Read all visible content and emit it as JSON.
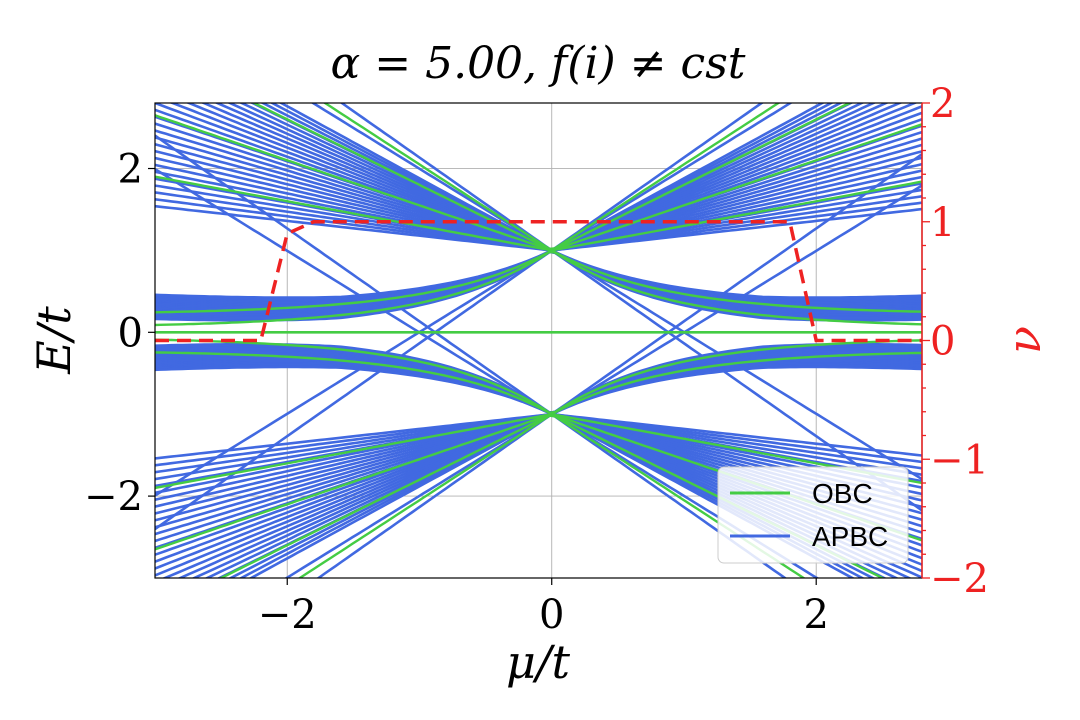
{
  "chart_data": {
    "type": "line",
    "title": "α = 5.00, f(i) ≠ cst",
    "xlabel": "μ/t",
    "ylabel": "E/t",
    "y2label": "ν",
    "xlim": [
      -3.0,
      2.8
    ],
    "ylim": [
      -3.0,
      2.8
    ],
    "y2lim": [
      -2,
      2
    ],
    "x_ticks": [
      -2,
      0,
      2
    ],
    "x_tick_labels": [
      "−2",
      "0",
      "2"
    ],
    "y_ticks": [
      -2,
      0,
      2
    ],
    "y_tick_labels": [
      "−2",
      "0",
      "2"
    ],
    "y2_ticks": [
      -2,
      -1,
      0,
      1,
      2
    ],
    "y2_tick_labels": [
      "−2",
      "−1",
      "0",
      "1",
      "2"
    ],
    "grid": true,
    "legend_position": "lower-right",
    "series": [
      {
        "name": "OBC",
        "color": "#44cc44",
        "description_values": {
          "zero_mode_E": 0.0,
          "node_points": [
            [
              0,
              1.0
            ],
            [
              0,
              -1.0
            ]
          ]
        }
      },
      {
        "name": "APBC",
        "color": "#4169e1",
        "description_values": {
          "node_points": [
            [
              0,
              1.0
            ],
            [
              0,
              -1.0
            ]
          ]
        }
      }
    ],
    "winding_number": {
      "color": "#ee2222",
      "axis": "right",
      "x": [
        -3.0,
        -2.2,
        -2.0,
        -1.8,
        1.8,
        2.0,
        2.2,
        2.8
      ],
      "y": [
        0,
        0,
        0.9,
        1,
        1,
        0,
        0,
        0
      ]
    }
  },
  "colors": {
    "obc": "#44cc44",
    "apbc": "#4169e1",
    "nu": "#ee2222",
    "grid": "#b0b0b0"
  }
}
